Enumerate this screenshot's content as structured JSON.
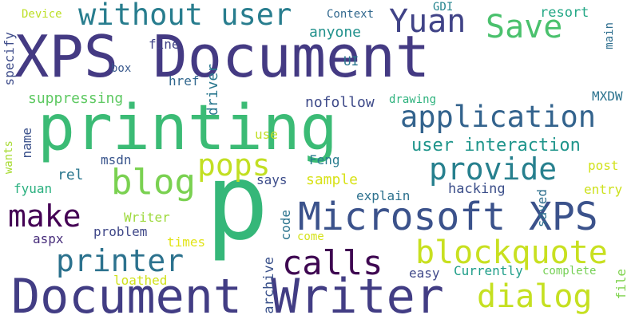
{
  "words": [
    {
      "text": "XPS Document",
      "color": "#443a83",
      "vertical": false
    },
    {
      "text": "printing",
      "color": "#3bbb75",
      "vertical": false
    },
    {
      "text": "p",
      "color": "#35b779",
      "vertical": false
    },
    {
      "text": "Document Writer",
      "color": "#423d84",
      "vertical": false
    },
    {
      "text": "Microsoft XPS",
      "color": "#3b528b",
      "vertical": false
    },
    {
      "text": "without user",
      "color": "#287d8e",
      "vertical": false
    },
    {
      "text": "Yuan",
      "color": "#404387",
      "vertical": false
    },
    {
      "text": "Save",
      "color": "#4ac16d",
      "vertical": false
    },
    {
      "text": "application",
      "color": "#33638d",
      "vertical": false
    },
    {
      "text": "provide",
      "color": "#27808e",
      "vertical": false
    },
    {
      "text": "pops",
      "color": "#c2df23",
      "vertical": false
    },
    {
      "text": "blog",
      "color": "#7ad151",
      "vertical": false
    },
    {
      "text": "make",
      "color": "#440154",
      "vertical": false
    },
    {
      "text": "printer",
      "color": "#2c728e",
      "vertical": false
    },
    {
      "text": "calls",
      "color": "#3e0751",
      "vertical": false
    },
    {
      "text": "blockquote",
      "color": "#c8e020",
      "vertical": false
    },
    {
      "text": "dialog",
      "color": "#c5e021",
      "vertical": false
    },
    {
      "text": "user interaction",
      "color": "#1f958b",
      "vertical": false
    },
    {
      "text": "Device",
      "color": "#bddf26",
      "vertical": false
    },
    {
      "text": "Context",
      "color": "#31688e",
      "vertical": false
    },
    {
      "text": "GDI",
      "color": "#25858e",
      "vertical": false
    },
    {
      "text": "resort",
      "color": "#22a785",
      "vertical": false
    },
    {
      "text": "main",
      "color": "#2e6e8e",
      "vertical": true
    },
    {
      "text": "anyone",
      "color": "#21918c",
      "vertical": false
    },
    {
      "text": "fine",
      "color": "#414487",
      "vertical": false
    },
    {
      "text": "specify",
      "color": "#3e4c8a",
      "vertical": true
    },
    {
      "text": "box",
      "color": "#38588c",
      "vertical": false
    },
    {
      "text": "UI",
      "color": "#2a768e",
      "vertical": false
    },
    {
      "text": "href",
      "color": "#31678e",
      "vertical": false
    },
    {
      "text": "driver",
      "color": "#2a778e",
      "vertical": true
    },
    {
      "text": "suppressing",
      "color": "#5ec962",
      "vertical": false
    },
    {
      "text": "MXDW",
      "color": "#2c738e",
      "vertical": false
    },
    {
      "text": "nofollow",
      "color": "#3e4a89",
      "vertical": false
    },
    {
      "text": "drawing",
      "color": "#2db27d",
      "vertical": false
    },
    {
      "text": "name",
      "color": "#3b518b",
      "vertical": true
    },
    {
      "text": "use",
      "color": "#c0df25",
      "vertical": false
    },
    {
      "text": "wants",
      "color": "#a8db34",
      "vertical": true
    },
    {
      "text": "Feng",
      "color": "#287c8e",
      "vertical": false
    },
    {
      "text": "post",
      "color": "#d2e21b",
      "vertical": false
    },
    {
      "text": "msdn",
      "color": "#39558c",
      "vertical": false
    },
    {
      "text": "rel",
      "color": "#2a768e",
      "vertical": false
    },
    {
      "text": "says",
      "color": "#3d4d8a",
      "vertical": false
    },
    {
      "text": "sample",
      "color": "#d8e219",
      "vertical": false
    },
    {
      "text": "fyuan",
      "color": "#2ab07f",
      "vertical": false
    },
    {
      "text": "hacking",
      "color": "#3c4f8a",
      "vertical": false
    },
    {
      "text": "entry",
      "color": "#cde11d",
      "vertical": false
    },
    {
      "text": "explain",
      "color": "#2d718e",
      "vertical": false
    },
    {
      "text": "saved",
      "color": "#2e6f8e",
      "vertical": true
    },
    {
      "text": "code",
      "color": "#2b748e",
      "vertical": true
    },
    {
      "text": "Writer",
      "color": "#9dd93b",
      "vertical": false
    },
    {
      "text": "problem",
      "color": "#3f4788",
      "vertical": false
    },
    {
      "text": "aspx",
      "color": "#472d7b",
      "vertical": false
    },
    {
      "text": "times",
      "color": "#e2e418",
      "vertical": false
    },
    {
      "text": "come",
      "color": "#d5e21a",
      "vertical": false
    },
    {
      "text": "archive",
      "color": "#3b528b",
      "vertical": true
    },
    {
      "text": "easy",
      "color": "#3f4889",
      "vertical": false
    },
    {
      "text": "Currently",
      "color": "#1f9e89",
      "vertical": false
    },
    {
      "text": "complete",
      "color": "#75d054",
      "vertical": false
    },
    {
      "text": "file",
      "color": "#7fd34e",
      "vertical": true
    },
    {
      "text": "loathed",
      "color": "#d0e11c",
      "vertical": false
    }
  ]
}
